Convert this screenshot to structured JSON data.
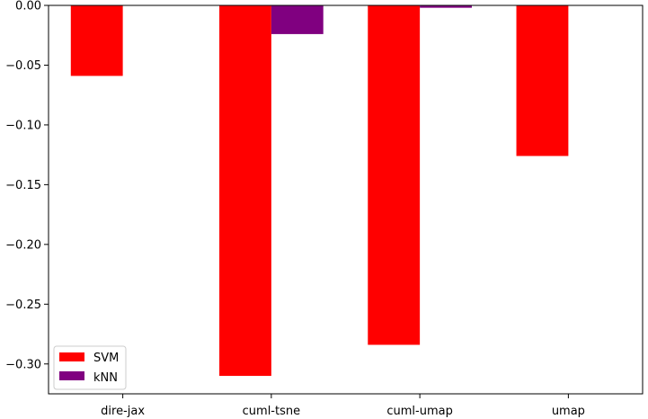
{
  "chart_data": {
    "type": "bar",
    "categories": [
      "dire-jax",
      "cuml-tsne",
      "cuml-umap",
      "umap"
    ],
    "series": [
      {
        "name": "SVM",
        "color": "#ff0000",
        "values": [
          -0.059,
          -0.31,
          -0.284,
          -0.126
        ]
      },
      {
        "name": "kNN",
        "color": "#800080",
        "values": [
          0.0,
          -0.024,
          -0.002,
          0.0
        ]
      }
    ],
    "title": "",
    "xlabel": "",
    "ylabel": "",
    "ylim": [
      -0.325,
      0.0
    ],
    "yticks": [
      0.0,
      -0.05,
      -0.1,
      -0.15,
      -0.2,
      -0.25,
      -0.3
    ],
    "ytick_labels": [
      "0.00",
      "−0.05",
      "−0.10",
      "−0.15",
      "−0.20",
      "−0.25",
      "−0.30"
    ],
    "grid": false,
    "legend_position": "lower-left"
  }
}
